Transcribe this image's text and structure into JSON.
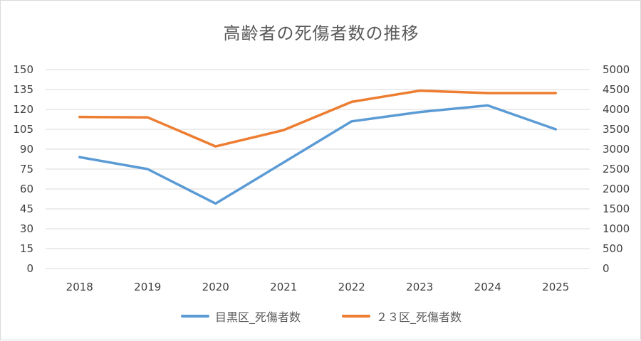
{
  "chart_data": {
    "type": "line",
    "title": "高齢者の死傷者数の推移",
    "categories": [
      "2018",
      "2019",
      "2020",
      "2021",
      "2022",
      "2023",
      "2024",
      "2025"
    ],
    "y_left": {
      "ticks": [
        "0",
        "15",
        "30",
        "45",
        "60",
        "75",
        "90",
        "105",
        "120",
        "135",
        "150"
      ],
      "range": [
        0,
        150
      ]
    },
    "y_right": {
      "ticks": [
        "0",
        "500",
        "1000",
        "1500",
        "2000",
        "2500",
        "3000",
        "3500",
        "4000",
        "4500",
        "5000"
      ],
      "range": [
        0,
        5000
      ]
    },
    "grid": true,
    "legend_position": "bottom",
    "series": [
      {
        "name": "目黒区_死傷者数",
        "axis": "left",
        "color": "#5B9BD5",
        "values": [
          84,
          75,
          49,
          80,
          111,
          118,
          123,
          105
        ]
      },
      {
        "name": "２３区_死傷者数",
        "axis": "right",
        "color": "#ED7D31",
        "values": [
          3810,
          3800,
          3070,
          3480,
          4190,
          4470,
          4410,
          4410
        ]
      }
    ]
  }
}
